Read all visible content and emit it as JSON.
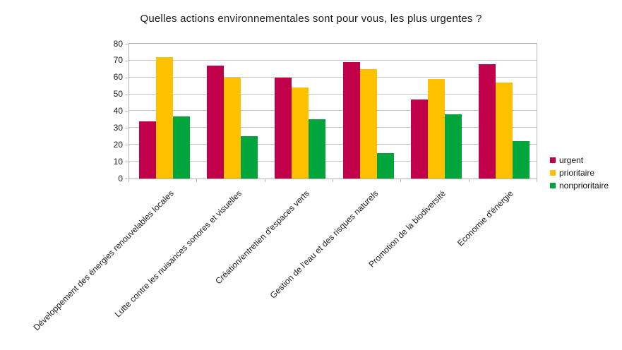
{
  "chart_data": {
    "type": "bar",
    "title": "Quelles actions environnementales sont pour vous, les plus urgentes ?",
    "categories": [
      "Développement des énergies renouvelables locales",
      "Lutte contre les nuisances sonores et visuelles",
      "Création/entretien d'espaces verts",
      "Gestion de l'eau et des risques naturels",
      "Promotion de la biodiversité",
      "Economie d'énergie"
    ],
    "series": [
      {
        "name": "urgent",
        "color": "#C0004B",
        "values": [
          34,
          67,
          60,
          69,
          47,
          68
        ]
      },
      {
        "name": "prioritaire",
        "color": "#FFC000",
        "values": [
          72,
          60,
          54,
          65,
          59,
          57
        ]
      },
      {
        "name": "nonprioritaire",
        "color": "#00A63C",
        "values": [
          37,
          25,
          35,
          15,
          38,
          22
        ]
      }
    ],
    "ylim": [
      0,
      80
    ],
    "yticks": [
      0,
      10,
      20,
      30,
      40,
      50,
      60,
      70,
      80
    ],
    "xlabel": "",
    "ylabel": "",
    "grid": true,
    "legend_position": "right",
    "category_label_rotation_deg": 45
  },
  "colors": {
    "background": "#ffffff",
    "gridline": "#c6c6c6",
    "axis_border": "#b3b3b3",
    "text": "#1a1a1a"
  }
}
